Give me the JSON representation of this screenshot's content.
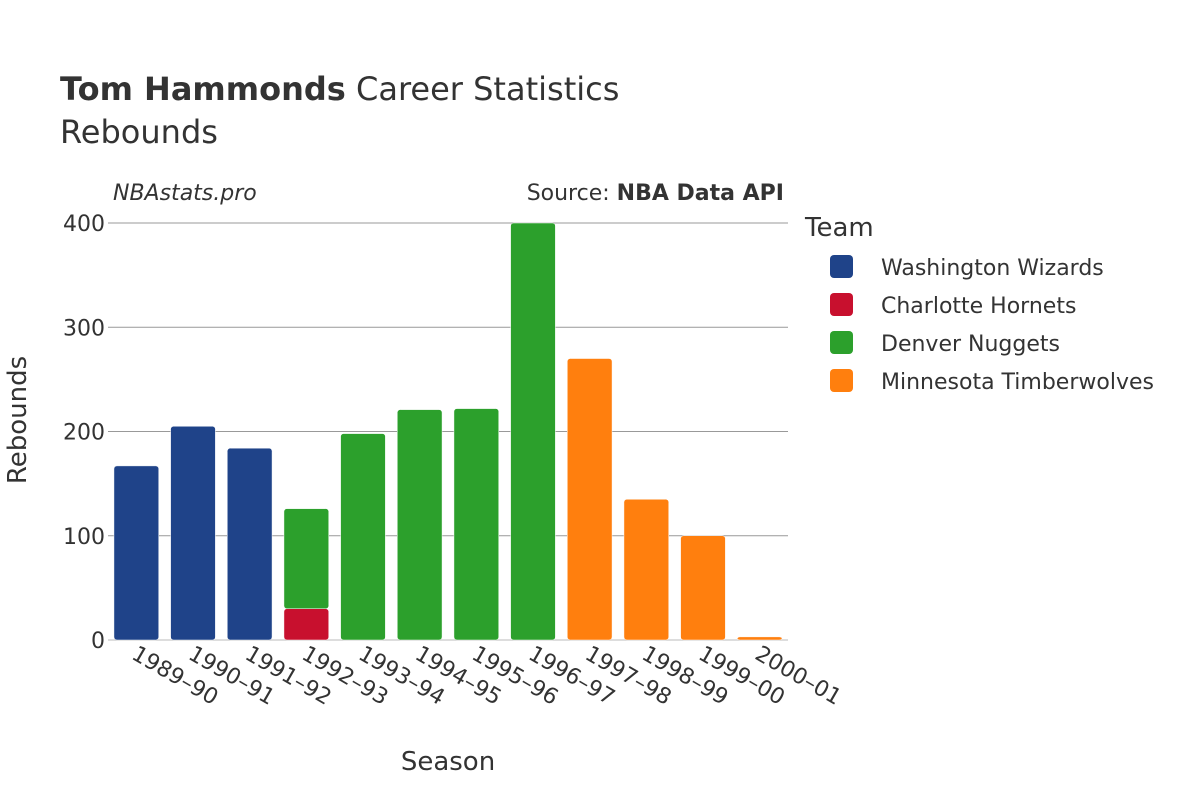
{
  "header": {
    "player_name": "Tom Hammonds",
    "title_rest": " Career Statistics",
    "subtitle": "Rebounds",
    "site": "NBAstats.pro",
    "source_prefix": "Source: ",
    "source_name": "NBA Data API"
  },
  "legend": {
    "title": "Team"
  },
  "colors": {
    "Washington Wizards": "#1f4389",
    "Charlotte Hornets": "#c8102e",
    "Denver Nuggets": "#2ca02c",
    "Minnesota Timberwolves": "#ff7f0e"
  },
  "chart_data": {
    "type": "bar",
    "stacked": true,
    "xlabel": "Season",
    "ylabel": "Rebounds",
    "ylim": [
      0,
      400
    ],
    "yticks": [
      0,
      100,
      200,
      300,
      400
    ],
    "grid": true,
    "legend_position": "right",
    "categories": [
      "1989–90",
      "1990–91",
      "1991–92",
      "1992–93",
      "1993–94",
      "1994–95",
      "1995–96",
      "1996–97",
      "1997–98",
      "1998–99",
      "1999–00",
      "2000–01"
    ],
    "series": [
      {
        "name": "Washington Wizards",
        "values": [
          167,
          205,
          184,
          0,
          0,
          0,
          0,
          0,
          0,
          0,
          0,
          0
        ]
      },
      {
        "name": "Charlotte Hornets",
        "values": [
          0,
          0,
          0,
          30,
          0,
          0,
          0,
          0,
          0,
          0,
          0,
          0
        ]
      },
      {
        "name": "Denver Nuggets",
        "values": [
          0,
          0,
          0,
          96,
          198,
          221,
          222,
          400,
          0,
          0,
          0,
          0
        ]
      },
      {
        "name": "Minnesota Timberwolves",
        "values": [
          0,
          0,
          0,
          0,
          0,
          0,
          0,
          0,
          270,
          135,
          100,
          3
        ]
      }
    ]
  }
}
